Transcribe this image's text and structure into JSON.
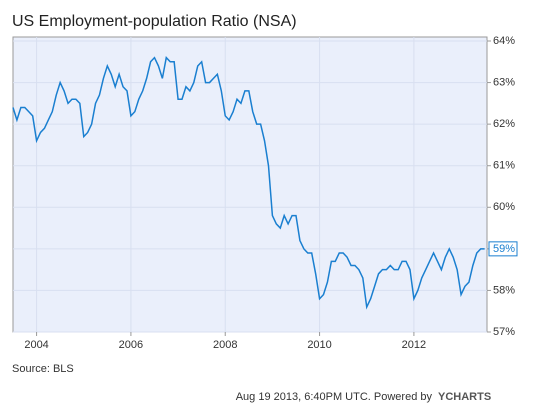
{
  "chart_data": {
    "type": "line",
    "title": "US Employment-population Ratio (NSA)",
    "source": "Source: BLS",
    "footer": "Aug 19 2013, 6:40PM UTC.  Powered by",
    "brand": "YCHARTS",
    "end_label": "59%",
    "xlim": [
      2003.5,
      2013.55
    ],
    "xticks": [
      2004,
      2006,
      2008,
      2010,
      2012
    ],
    "ylim": [
      57,
      64
    ],
    "yticks": [
      {
        "value": 57,
        "label": "57%"
      },
      {
        "value": 58,
        "label": "58%"
      },
      {
        "value": 59,
        "label": "59%"
      },
      {
        "value": 60,
        "label": "60%"
      },
      {
        "value": 61,
        "label": "61%"
      },
      {
        "value": 62,
        "label": "62%"
      },
      {
        "value": 63,
        "label": "63%"
      },
      {
        "value": 64,
        "label": "64%"
      }
    ],
    "grid": true,
    "x": [
      2003.5,
      2003.583,
      2003.667,
      2003.75,
      2003.833,
      2003.917,
      2004,
      2004.083,
      2004.167,
      2004.25,
      2004.333,
      2004.417,
      2004.5,
      2004.583,
      2004.667,
      2004.75,
      2004.833,
      2004.917,
      2005,
      2005.083,
      2005.167,
      2005.25,
      2005.333,
      2005.417,
      2005.5,
      2005.583,
      2005.667,
      2005.75,
      2005.833,
      2005.917,
      2006,
      2006.083,
      2006.167,
      2006.25,
      2006.333,
      2006.417,
      2006.5,
      2006.583,
      2006.667,
      2006.75,
      2006.833,
      2006.917,
      2007,
      2007.083,
      2007.167,
      2007.25,
      2007.333,
      2007.417,
      2007.5,
      2007.583,
      2007.667,
      2007.75,
      2007.833,
      2007.917,
      2008,
      2008.083,
      2008.167,
      2008.25,
      2008.333,
      2008.417,
      2008.5,
      2008.583,
      2008.667,
      2008.75,
      2008.833,
      2008.917,
      2009,
      2009.083,
      2009.167,
      2009.25,
      2009.333,
      2009.417,
      2009.5,
      2009.583,
      2009.667,
      2009.75,
      2009.833,
      2009.917,
      2010,
      2010.083,
      2010.167,
      2010.25,
      2010.333,
      2010.417,
      2010.5,
      2010.583,
      2010.667,
      2010.75,
      2010.833,
      2010.917,
      2011,
      2011.083,
      2011.167,
      2011.25,
      2011.333,
      2011.417,
      2011.5,
      2011.583,
      2011.667,
      2011.75,
      2011.833,
      2011.917,
      2012,
      2012.083,
      2012.167,
      2012.25,
      2012.333,
      2012.417,
      2012.5,
      2012.583,
      2012.667,
      2012.75,
      2012.833,
      2012.917,
      2013,
      2013.083,
      2013.167,
      2013.25,
      2013.333,
      2013.417,
      2013.5
    ],
    "series": [
      {
        "name": "US Employment-population Ratio (NSA)",
        "color": "#1a7fd0",
        "values": [
          62.4,
          62.1,
          62.4,
          62.4,
          62.3,
          62.2,
          61.6,
          61.8,
          61.9,
          62.1,
          62.3,
          62.7,
          63.0,
          62.8,
          62.5,
          62.6,
          62.6,
          62.5,
          61.7,
          61.8,
          62.0,
          62.5,
          62.7,
          63.1,
          63.4,
          63.2,
          62.9,
          63.2,
          62.9,
          62.8,
          62.2,
          62.3,
          62.6,
          62.8,
          63.1,
          63.5,
          63.6,
          63.4,
          63.1,
          63.6,
          63.5,
          63.5,
          62.6,
          62.6,
          62.9,
          62.8,
          63.0,
          63.4,
          63.5,
          63.0,
          63.0,
          63.1,
          63.2,
          62.8,
          62.2,
          62.1,
          62.3,
          62.6,
          62.5,
          62.8,
          62.8,
          62.3,
          62.0,
          62.0,
          61.6,
          61.0,
          59.8,
          59.6,
          59.5,
          59.8,
          59.6,
          59.8,
          59.8,
          59.2,
          59.0,
          58.9,
          58.9,
          58.4,
          57.8,
          57.9,
          58.2,
          58.7,
          58.7,
          58.9,
          58.9,
          58.8,
          58.6,
          58.6,
          58.5,
          58.3,
          57.6,
          57.8,
          58.1,
          58.4,
          58.5,
          58.5,
          58.6,
          58.5,
          58.5,
          58.7,
          58.7,
          58.5,
          57.8,
          58.0,
          58.3,
          58.5,
          58.7,
          58.9,
          58.7,
          58.5,
          58.8,
          59.0,
          58.8,
          58.5,
          57.9,
          58.1,
          58.2,
          58.6,
          58.9,
          59.0,
          59.0
        ]
      }
    ]
  }
}
